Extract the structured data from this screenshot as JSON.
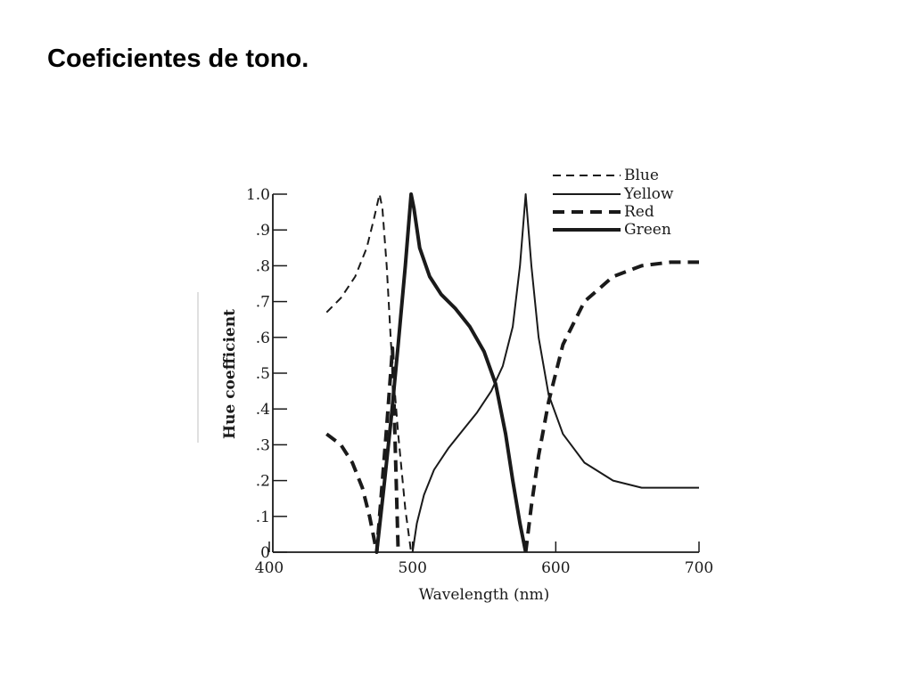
{
  "slide": {
    "title": "Coeficientes de tono."
  },
  "chart_data": {
    "type": "line",
    "title": "",
    "xlabel": "Wavelength (nm)",
    "ylabel": "Hue coefficient",
    "xlim": [
      400,
      700
    ],
    "ylim": [
      0,
      1.0
    ],
    "x_ticks": [
      {
        "value": 400,
        "label": "400"
      },
      {
        "value": 500,
        "label": "500"
      },
      {
        "value": 600,
        "label": "600"
      },
      {
        "value": 700,
        "label": "700"
      }
    ],
    "y_ticks": [
      {
        "value": 0,
        "label": "0"
      },
      {
        "value": 0.1,
        "label": ".1"
      },
      {
        "value": 0.2,
        "label": ".2"
      },
      {
        "value": 0.3,
        "label": ".3"
      },
      {
        "value": 0.4,
        "label": ".4"
      },
      {
        "value": 0.5,
        "label": ".5"
      },
      {
        "value": 0.6,
        "label": ".6"
      },
      {
        "value": 0.7,
        "label": ".7"
      },
      {
        "value": 0.8,
        "label": ".8"
      },
      {
        "value": 0.9,
        "label": ".9"
      },
      {
        "value": 1.0,
        "label": "1.0"
      }
    ],
    "legend_position": "top-right",
    "grid": false,
    "series": [
      {
        "name": "Blue",
        "style": "dashed-thin",
        "color": "#1a1a1a",
        "x": [
          440,
          450,
          460,
          468,
          473,
          477,
          479,
          482,
          485,
          490,
          495,
          499
        ],
        "y": [
          0.67,
          0.71,
          0.77,
          0.85,
          0.93,
          1.0,
          0.96,
          0.8,
          0.58,
          0.33,
          0.12,
          0.0
        ]
      },
      {
        "name": "Yellow",
        "style": "solid-thin",
        "color": "#1a1a1a",
        "x": [
          500,
          503,
          508,
          515,
          525,
          535,
          545,
          555,
          563,
          570,
          575,
          579,
          583,
          588,
          595,
          605,
          620,
          640,
          660,
          680,
          700
        ],
        "y": [
          0.0,
          0.08,
          0.16,
          0.23,
          0.29,
          0.34,
          0.39,
          0.45,
          0.52,
          0.63,
          0.8,
          1.0,
          0.8,
          0.6,
          0.44,
          0.33,
          0.25,
          0.2,
          0.18,
          0.18,
          0.18
        ]
      },
      {
        "name": "Red",
        "style": "dashed-thick",
        "color": "#1a1a1a",
        "x": [
          440,
          450,
          458,
          465,
          470,
          475,
          478,
          482,
          486,
          490,
          579,
          583,
          588,
          595,
          605,
          620,
          640,
          660,
          680,
          700
        ],
        "y": [
          0.33,
          0.3,
          0.25,
          0.18,
          0.1,
          0.0,
          0.15,
          0.35,
          0.57,
          0.0,
          0.0,
          0.13,
          0.27,
          0.42,
          0.58,
          0.7,
          0.77,
          0.8,
          0.81,
          0.81
        ]
      },
      {
        "name": "Green",
        "style": "solid-thick",
        "color": "#1a1a1a",
        "x": [
          475,
          480,
          485,
          490,
          495,
          499,
          501,
          505,
          512,
          520,
          530,
          540,
          550,
          558,
          565,
          570,
          575,
          579
        ],
        "y": [
          0.0,
          0.18,
          0.37,
          0.58,
          0.8,
          1.0,
          0.96,
          0.85,
          0.77,
          0.72,
          0.68,
          0.63,
          0.56,
          0.47,
          0.33,
          0.2,
          0.08,
          0.0
        ]
      }
    ]
  }
}
